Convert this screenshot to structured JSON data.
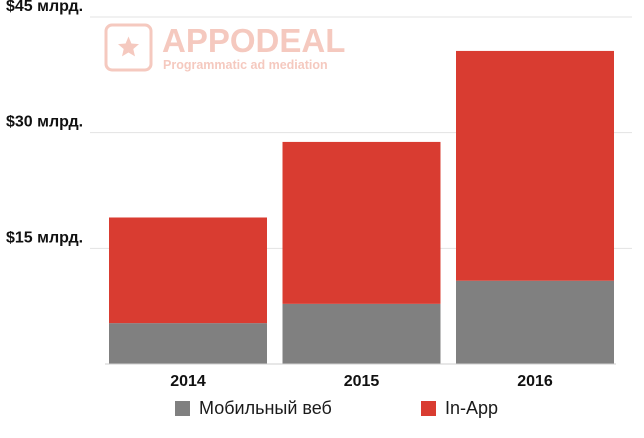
{
  "watermark": {
    "brand": "APPODEAL",
    "tagline": "Programmatic ad mediation",
    "icon": "star-icon",
    "color": "#f5c9bf"
  },
  "chart_data": {
    "type": "bar",
    "stacked": true,
    "categories": [
      "2014",
      "2015",
      "2016"
    ],
    "series": [
      {
        "name": "Мобильный веб",
        "color": "#808080",
        "values": [
          5.3,
          7.8,
          10.8
        ]
      },
      {
        "name": "In-App",
        "color": "#d93c31",
        "values": [
          13.7,
          21.0,
          29.8
        ]
      }
    ],
    "ylim": [
      0,
      45
    ],
    "yticks": [
      15,
      30,
      45
    ],
    "ytick_labels": [
      "$15 млрд.",
      "$30 млрд.",
      "$45 млрд."
    ],
    "grid": true,
    "legend_position": "bottom",
    "title": "",
    "xlabel": "",
    "ylabel": ""
  }
}
